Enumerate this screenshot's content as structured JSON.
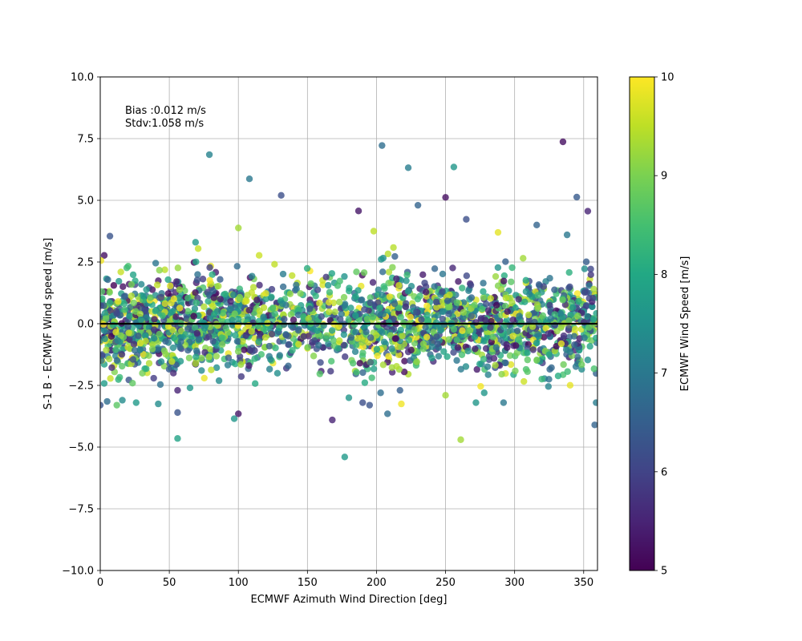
{
  "chart_data": {
    "type": "scatter",
    "xlabel": "ECMWF Azimuth Wind Direction [deg]",
    "ylabel": "S-1 B - ECMWF Wind speed [m/s]",
    "xlim": [
      0,
      360
    ],
    "ylim": [
      -10,
      10
    ],
    "x_ticks": [
      0,
      50,
      100,
      150,
      200,
      250,
      300,
      350
    ],
    "y_ticks": [
      "−10.0",
      "−7.5",
      "−5.0",
      "−2.5",
      "0.0",
      "2.5",
      "5.0",
      "7.5",
      "10.0"
    ],
    "y_tick_values": [
      -10,
      -7.5,
      -5,
      -2.5,
      0,
      2.5,
      5,
      7.5,
      10
    ],
    "grid": true,
    "annotation_lines": [
      "Bias :0.012 m/s",
      "Stdv:1.058 m/s"
    ],
    "zero_line": 0,
    "colorbar": {
      "label": "ECMWF Wind Speed [m/s]",
      "range": [
        5,
        10
      ],
      "ticks": [
        5,
        6,
        7,
        8,
        9,
        10
      ],
      "colormap": "viridis"
    },
    "marker_alpha": 0.8,
    "outlier_points": [
      {
        "x": 79,
        "y": 6.85,
        "c": 7.2
      },
      {
        "x": 108,
        "y": 5.87,
        "c": 7.0
      },
      {
        "x": 131,
        "y": 5.2,
        "c": 6.2
      },
      {
        "x": 187,
        "y": 4.57,
        "c": 5.3
      },
      {
        "x": 204,
        "y": 7.22,
        "c": 6.8
      },
      {
        "x": 223,
        "y": 6.32,
        "c": 7.1
      },
      {
        "x": 230,
        "y": 4.8,
        "c": 6.6
      },
      {
        "x": 250,
        "y": 5.12,
        "c": 5.2
      },
      {
        "x": 256,
        "y": 6.35,
        "c": 7.6
      },
      {
        "x": 265,
        "y": 4.23,
        "c": 6.2
      },
      {
        "x": 316,
        "y": 4.0,
        "c": 6.6
      },
      {
        "x": 335,
        "y": 7.37,
        "c": 5.2
      },
      {
        "x": 338,
        "y": 3.6,
        "c": 7.0
      },
      {
        "x": 345,
        "y": 5.13,
        "c": 6.4
      },
      {
        "x": 353,
        "y": 4.56,
        "c": 5.5
      },
      {
        "x": 7,
        "y": 3.55,
        "c": 6.3
      },
      {
        "x": 100,
        "y": 3.88,
        "c": 9.3
      },
      {
        "x": 198,
        "y": 3.75,
        "c": 9.5
      },
      {
        "x": 288,
        "y": 3.7,
        "c": 9.8
      },
      {
        "x": 69,
        "y": 3.3,
        "c": 7.7
      },
      {
        "x": 0,
        "y": -3.3,
        "c": 6.3
      },
      {
        "x": 5,
        "y": -3.15,
        "c": 6.8
      },
      {
        "x": 12,
        "y": -3.3,
        "c": 8.7
      },
      {
        "x": 16,
        "y": -3.1,
        "c": 7.4
      },
      {
        "x": 26,
        "y": -3.2,
        "c": 7.7
      },
      {
        "x": 42,
        "y": -3.25,
        "c": 7.4
      },
      {
        "x": 56,
        "y": -3.6,
        "c": 6.3
      },
      {
        "x": 56,
        "y": -4.65,
        "c": 7.9
      },
      {
        "x": 56,
        "y": -2.7,
        "c": 5.5
      },
      {
        "x": 65,
        "y": -2.6,
        "c": 7.6
      },
      {
        "x": 97,
        "y": -3.85,
        "c": 7.6
      },
      {
        "x": 100,
        "y": -3.65,
        "c": 5.3
      },
      {
        "x": 168,
        "y": -3.9,
        "c": 5.5
      },
      {
        "x": 177,
        "y": -5.4,
        "c": 7.7
      },
      {
        "x": 180,
        "y": -3.0,
        "c": 7.6
      },
      {
        "x": 190,
        "y": -3.2,
        "c": 6.2
      },
      {
        "x": 195,
        "y": -3.3,
        "c": 6.3
      },
      {
        "x": 203,
        "y": -2.8,
        "c": 6.8
      },
      {
        "x": 208,
        "y": -3.65,
        "c": 6.8
      },
      {
        "x": 217,
        "y": -2.7,
        "c": 6.5
      },
      {
        "x": 218,
        "y": -3.25,
        "c": 9.9
      },
      {
        "x": 250,
        "y": -2.9,
        "c": 9.3
      },
      {
        "x": 261,
        "y": -4.7,
        "c": 9.3
      },
      {
        "x": 272,
        "y": -3.2,
        "c": 7.6
      },
      {
        "x": 278,
        "y": -2.8,
        "c": 7.6
      },
      {
        "x": 292,
        "y": -3.2,
        "c": 7.0
      },
      {
        "x": 359,
        "y": -3.2,
        "c": 7.1
      },
      {
        "x": 358,
        "y": -4.1,
        "c": 6.6
      }
    ],
    "bulk_distribution": {
      "n_points": 2400,
      "seed": 12345,
      "y_center": 0.0,
      "y_spread": 1.0
    }
  }
}
